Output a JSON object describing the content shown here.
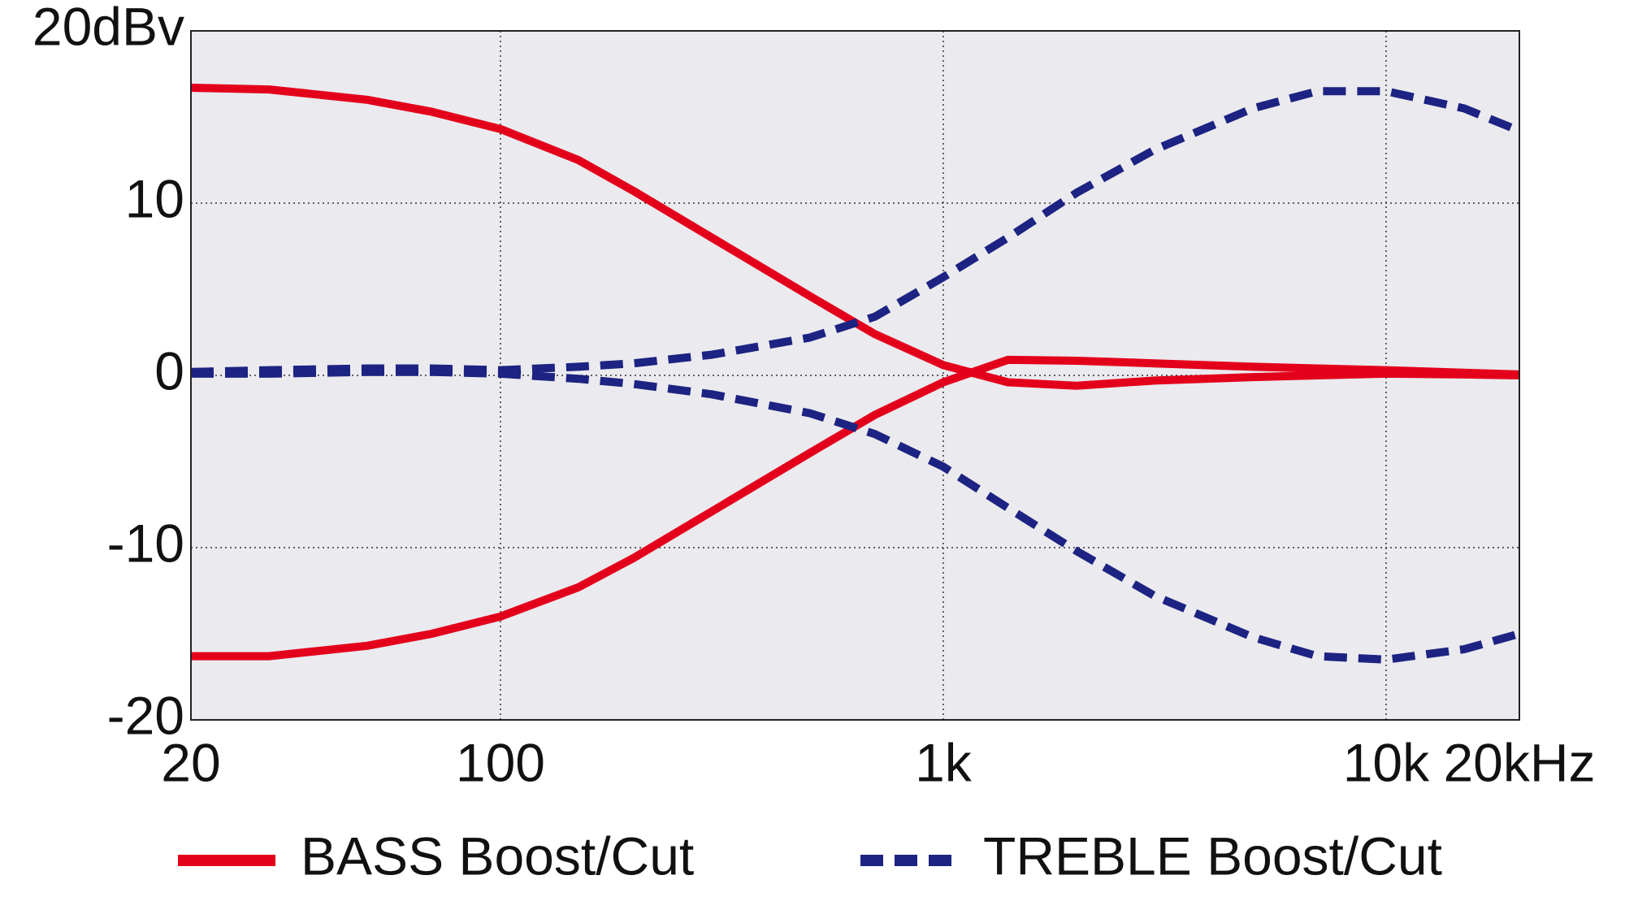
{
  "chart_data": {
    "type": "line",
    "log_x": true,
    "grid": true,
    "xlim": [
      20,
      20000
    ],
    "xticks": [
      20,
      100,
      {
        "value": 1000,
        "label": "1k"
      },
      {
        "value": 10000,
        "label": "10k"
      },
      {
        "value": 20000,
        "label": "20kHz"
      }
    ],
    "ylim": [
      -20,
      20
    ],
    "yticks": [
      -20,
      -10,
      0,
      10,
      {
        "value": 20,
        "label": "20dBv"
      }
    ],
    "x": [
      20,
      30,
      50,
      70,
      100,
      150,
      200,
      300,
      500,
      700,
      1000,
      1400,
      2000,
      3000,
      5000,
      7000,
      10000,
      15000,
      20000
    ],
    "series": [
      {
        "name": "BASS Boost/Cut",
        "color": "#e3001b",
        "dashed": false,
        "curves": [
          [
            16.7,
            16.6,
            16.0,
            15.3,
            14.3,
            12.5,
            10.7,
            8.0,
            4.6,
            2.4,
            0.6,
            -0.4,
            -0.6,
            -0.3,
            -0.1,
            0.0,
            0.1,
            0.05,
            0.0
          ],
          [
            -16.3,
            -16.3,
            -15.7,
            -15.0,
            -14.0,
            -12.3,
            -10.6,
            -7.9,
            -4.5,
            -2.3,
            -0.4,
            0.9,
            0.85,
            0.7,
            0.5,
            0.4,
            0.3,
            0.15,
            0.05
          ]
        ]
      },
      {
        "name": "TREBLE Boost/Cut",
        "color": "#1c2382",
        "dashed": true,
        "curves": [
          [
            0.2,
            0.3,
            0.4,
            0.4,
            0.3,
            0.5,
            0.7,
            1.2,
            2.2,
            3.4,
            5.7,
            8.0,
            10.6,
            13.1,
            15.5,
            16.5,
            16.5,
            15.5,
            14.2
          ],
          [
            0.1,
            0.1,
            0.2,
            0.2,
            0.1,
            -0.2,
            -0.5,
            -1.1,
            -2.2,
            -3.4,
            -5.3,
            -7.7,
            -10.2,
            -12.8,
            -15.2,
            -16.3,
            -16.5,
            -15.9,
            -15.0
          ]
        ]
      }
    ]
  }
}
